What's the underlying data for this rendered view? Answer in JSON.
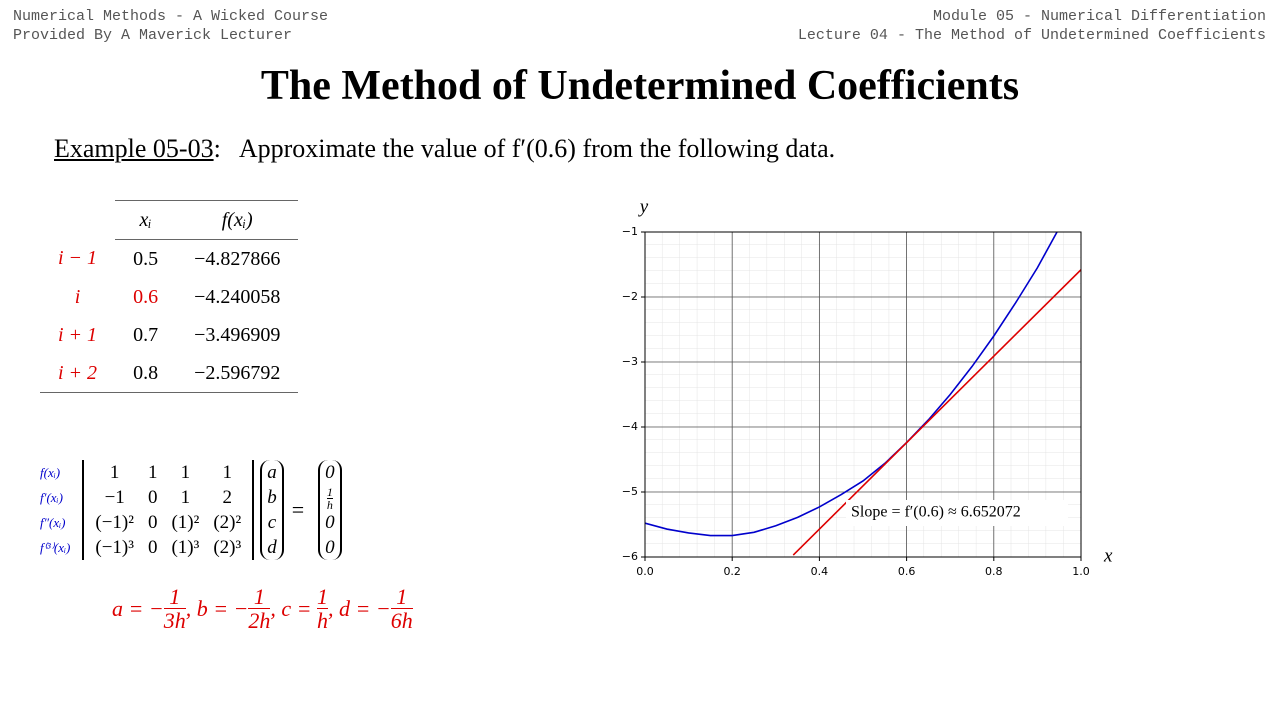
{
  "header": {
    "left": [
      "Numerical Methods - A Wicked Course",
      "Provided By A Maverick Lecturer"
    ],
    "right": [
      "Module 05 - Numerical Differentiation",
      "Lecture 04 - The Method of Undetermined Coefficients"
    ]
  },
  "title": "The Method of Undetermined Coefficients",
  "example": {
    "label": "Example 05-03",
    "text": ":   Approximate the value of f′(0.6) from the following data."
  },
  "table": {
    "header": [
      "xᵢ",
      "f(xᵢ)"
    ],
    "rows": [
      [
        "i − 1",
        "0.5",
        "−4.827866"
      ],
      [
        "i",
        "0.6",
        "−4.240058"
      ],
      [
        "i + 1",
        "0.7",
        "−3.496909"
      ],
      [
        "i + 2",
        "0.8",
        "−2.596792"
      ]
    ]
  },
  "system": {
    "row_labels": [
      "f(xᵢ)",
      "f′(xᵢ)",
      "f″(xᵢ)",
      "f⁽³⁾(xᵢ)"
    ],
    "matrix": [
      [
        "1",
        "1",
        "1",
        "1"
      ],
      [
        "−1",
        "0",
        "1",
        "2"
      ],
      [
        "(−1)²",
        "0",
        "(1)²",
        "(2)²"
      ],
      [
        "(−1)³",
        "0",
        "(1)³",
        "(2)³"
      ]
    ],
    "unknowns": [
      "a",
      "b",
      "c",
      "d"
    ],
    "equals": "=",
    "rhs": [
      "0",
      {
        "num": "1",
        "den": "h"
      },
      "0",
      "0"
    ]
  },
  "solution": [
    {
      "prefix": "a = −",
      "num": "1",
      "den": "3h"
    },
    {
      "prefix": ", b = −",
      "num": "1",
      "den": "2h"
    },
    {
      "prefix": ", c = ",
      "num": "1",
      "den": "h"
    },
    {
      "prefix": ", d = −",
      "num": "1",
      "den": "6h"
    }
  ],
  "chart_data": {
    "type": "line",
    "x_label": "x",
    "y_label": "y",
    "annotation": "Slope = f′(0.6) ≈ 6.652072",
    "xlim": [
      0,
      1
    ],
    "ylim": [
      -6,
      -1
    ],
    "xticks": [
      {
        "value": 0,
        "label": "0.0"
      },
      0.2,
      0.4,
      0.6,
      0.8,
      {
        "value": 1,
        "label": "1.0"
      }
    ],
    "yticks": [
      {
        "value": -6,
        "label": "−6"
      },
      {
        "value": -5,
        "label": "−5"
      },
      {
        "value": -4,
        "label": "−4"
      },
      {
        "value": -3,
        "label": "−3"
      },
      {
        "value": -2,
        "label": "−2"
      },
      {
        "value": -1,
        "label": "−1"
      }
    ],
    "grid": true,
    "series": [
      {
        "color": "#0000cc",
        "x": [
          0,
          0.05,
          0.1,
          0.15,
          0.2,
          0.25,
          0.3,
          0.35,
          0.4,
          0.45,
          0.5,
          0.55,
          0.6,
          0.65,
          0.7,
          0.75,
          0.8,
          0.85,
          0.9,
          0.945
        ],
        "values": [
          -5.48,
          -5.57,
          -5.63,
          -5.67,
          -5.67,
          -5.62,
          -5.52,
          -5.39,
          -5.23,
          -5.04,
          -4.83,
          -4.56,
          -4.24,
          -3.89,
          -3.5,
          -3.07,
          -2.6,
          -2.09,
          -1.55,
          -1.0
        ]
      },
      {
        "color": "#dd0000",
        "x": [
          0.34,
          1.0
        ],
        "values": [
          -5.97,
          -1.58
        ]
      }
    ]
  }
}
